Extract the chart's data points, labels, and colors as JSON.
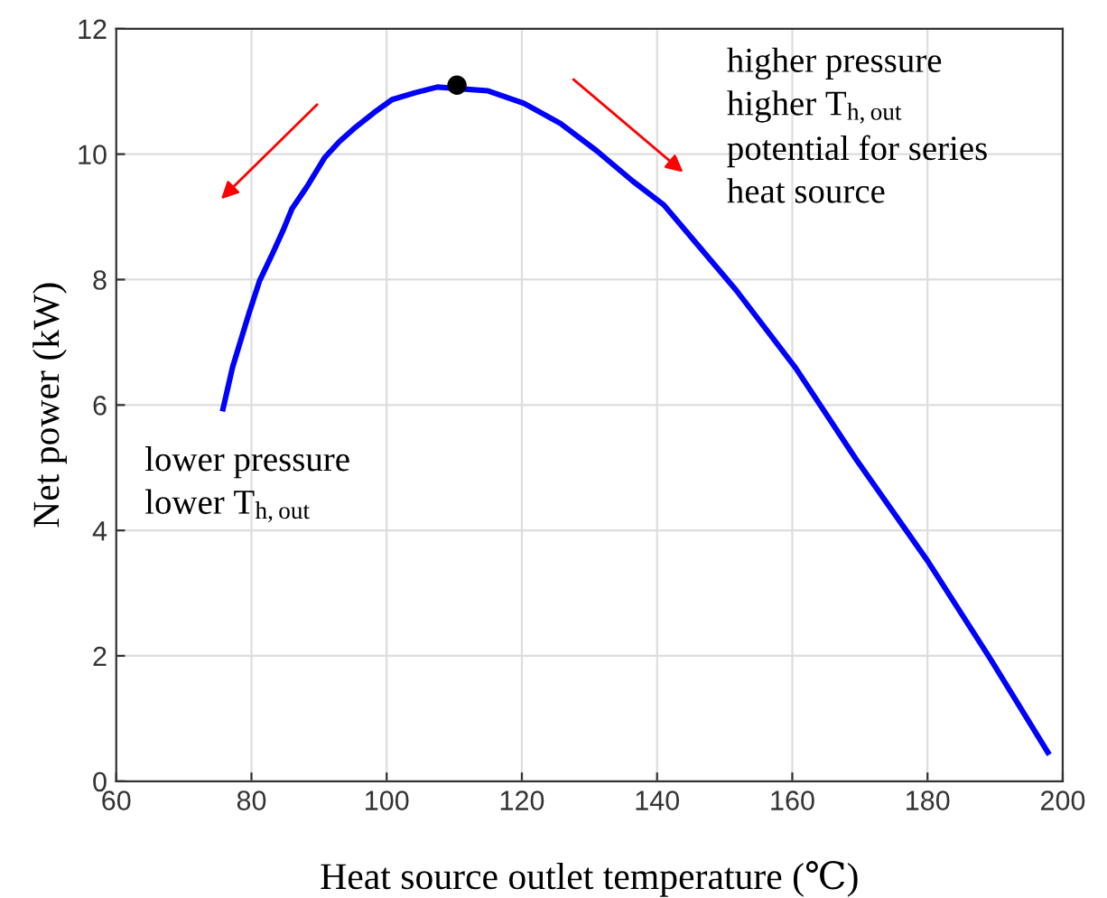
{
  "chart_data": {
    "type": "line",
    "xlabel": "Heat source outlet temperature (℃)",
    "ylabel": "Net power (kW)",
    "xlim": [
      60,
      200
    ],
    "xticks": [
      60,
      80,
      100,
      120,
      140,
      160,
      180,
      200
    ],
    "ylim": [
      0,
      12
    ],
    "yticks": [
      0,
      2,
      4,
      6,
      8,
      10,
      12
    ],
    "grid": true,
    "marker": "none",
    "line_style": "solid",
    "series": [
      {
        "color": "#0000ff",
        "x": [
          75.8,
          77.2,
          79.6,
          81.2,
          83.1,
          84.7,
          86.0,
          88.2,
          90.8,
          93.0,
          95.4,
          98.1,
          100.8,
          104.2,
          107.5,
          115.0,
          120.3,
          125.7,
          131.0,
          136.4,
          141.0,
          151.7,
          160.5,
          169.4,
          180.1,
          189.2,
          197.8
        ],
        "values": [
          5.94,
          6.6,
          7.45,
          7.98,
          8.41,
          8.79,
          9.13,
          9.48,
          9.94,
          10.2,
          10.43,
          10.66,
          10.87,
          10.98,
          11.07,
          11.01,
          10.81,
          10.49,
          10.06,
          9.57,
          9.19,
          7.83,
          6.59,
          5.14,
          3.5,
          1.97,
          0.46
        ]
      },
      {
        "type": "scatter",
        "color": "#000000",
        "marker": "circle",
        "x": [
          110.4
        ],
        "values": [
          11.1
        ]
      }
    ],
    "annotations": [
      "higher pressure\nhigher T$_{h,out}$\npotential for series\nheat source",
      "lower pressure\nlower T$_{h,out}$"
    ]
  }
}
